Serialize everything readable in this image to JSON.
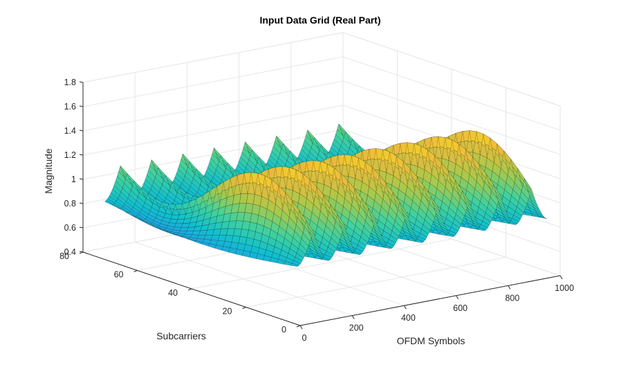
{
  "chart_data": {
    "type": "surface",
    "title": "Input Data Grid (Real Part)",
    "xlabel": "OFDM Symbols",
    "ylabel": "Subcarriers",
    "zlabel": "Magnitude",
    "xlim": [
      0,
      1000
    ],
    "ylim": [
      0,
      80
    ],
    "zlim": [
      0.4,
      1.8
    ],
    "xticks": [
      "0",
      "200",
      "400",
      "600",
      "800",
      "1000"
    ],
    "yticks": [
      "0",
      "20",
      "40",
      "60",
      "80"
    ],
    "zticks": [
      "0.4",
      "0.6",
      "0.8",
      "1",
      "1.2",
      "1.4",
      "1.6",
      "1.8"
    ],
    "x_extent": [
      0,
      960
    ],
    "y_extent": [
      1,
      72
    ],
    "symbol_period": 120,
    "wave_count": 8,
    "colormap": "parula",
    "grid": true,
    "view": "3d-iso",
    "surface_model": {
      "base": 1.0,
      "subcarrier_amplitude": 0.25,
      "symbol_modulation_amplitude": 0.45
    }
  },
  "colors": {
    "background": "#ffffff",
    "grid": "#e6e6e6",
    "axis": "#262626",
    "mesh_edge": "#000000"
  }
}
